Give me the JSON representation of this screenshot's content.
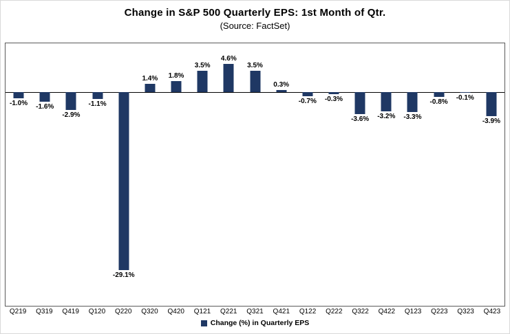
{
  "header": {
    "title": "Change in S&P 500 Quarterly EPS: 1st Month of Qtr.",
    "subtitle": "(Source: FactSet)"
  },
  "legend": {
    "label": "Change (%) in Quarterly EPS"
  },
  "colors": {
    "bar": "#1F3864",
    "plot_border": "#595959",
    "zero_axis": "#000000"
  },
  "chart_data": {
    "type": "bar",
    "title": "Change in S&P 500 Quarterly EPS: 1st Month of Qtr.",
    "subtitle": "(Source: FactSet)",
    "categories": [
      "Q219",
      "Q319",
      "Q419",
      "Q120",
      "Q220",
      "Q320",
      "Q420",
      "Q121",
      "Q221",
      "Q321",
      "Q421",
      "Q122",
      "Q222",
      "Q322",
      "Q422",
      "Q123",
      "Q223",
      "Q323",
      "Q423"
    ],
    "values": [
      -1.0,
      -1.6,
      -2.9,
      -1.1,
      -29.1,
      1.4,
      1.8,
      3.5,
      4.6,
      3.5,
      0.3,
      -0.7,
      -0.3,
      -3.6,
      -3.2,
      -3.3,
      -0.8,
      -0.1,
      -3.9
    ],
    "labels": [
      "-1.0%",
      "-1.6%",
      "-2.9%",
      "-1.1%",
      "-29.1%",
      "1.4%",
      "1.8%",
      "3.5%",
      "4.6%",
      "3.5%",
      "0.3%",
      "-0.7%",
      "-0.3%",
      "-3.6%",
      "-3.2%",
      "-3.3%",
      "-0.8%",
      "-0.1%",
      "-3.9%"
    ],
    "series_name": "Change (%) in Quarterly EPS",
    "xlabel": "",
    "ylabel": "",
    "ylim": [
      -35,
      8
    ],
    "grid": false,
    "legend_position": "bottom",
    "bar_color": "#1F3864"
  }
}
